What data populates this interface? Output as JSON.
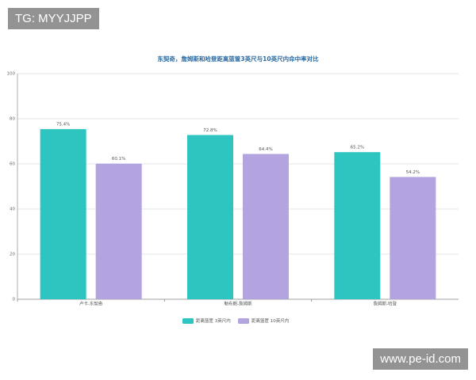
{
  "chart_data": {
    "type": "bar",
    "title": "东契奇，詹姆斯和哈登距离篮筐3英尺与10英尺内命中率对比",
    "categories": [
      "卢卡-东契奇",
      "勒布朗-詹姆斯",
      "詹姆斯-哈登"
    ],
    "series": [
      {
        "name": "距离篮筐 3英尺内",
        "color": "#2ec5c1",
        "values": [
          75.4,
          72.8,
          65.2
        ],
        "value_labels": [
          "75.4%",
          "72.8%",
          "65.2%"
        ]
      },
      {
        "name": "距离篮筐 10英尺内",
        "color": "#b3a3df",
        "values": [
          60.1,
          64.4,
          54.2
        ],
        "value_labels": [
          "60.1%",
          "64.4%",
          "54.2%"
        ]
      }
    ],
    "ylim": [
      0,
      100
    ],
    "yticks": [
      0,
      20,
      40,
      60,
      80,
      100
    ],
    "grid": true
  },
  "watermarks": [
    "TG: MYYJJPP",
    "www.pe-id.com"
  ]
}
